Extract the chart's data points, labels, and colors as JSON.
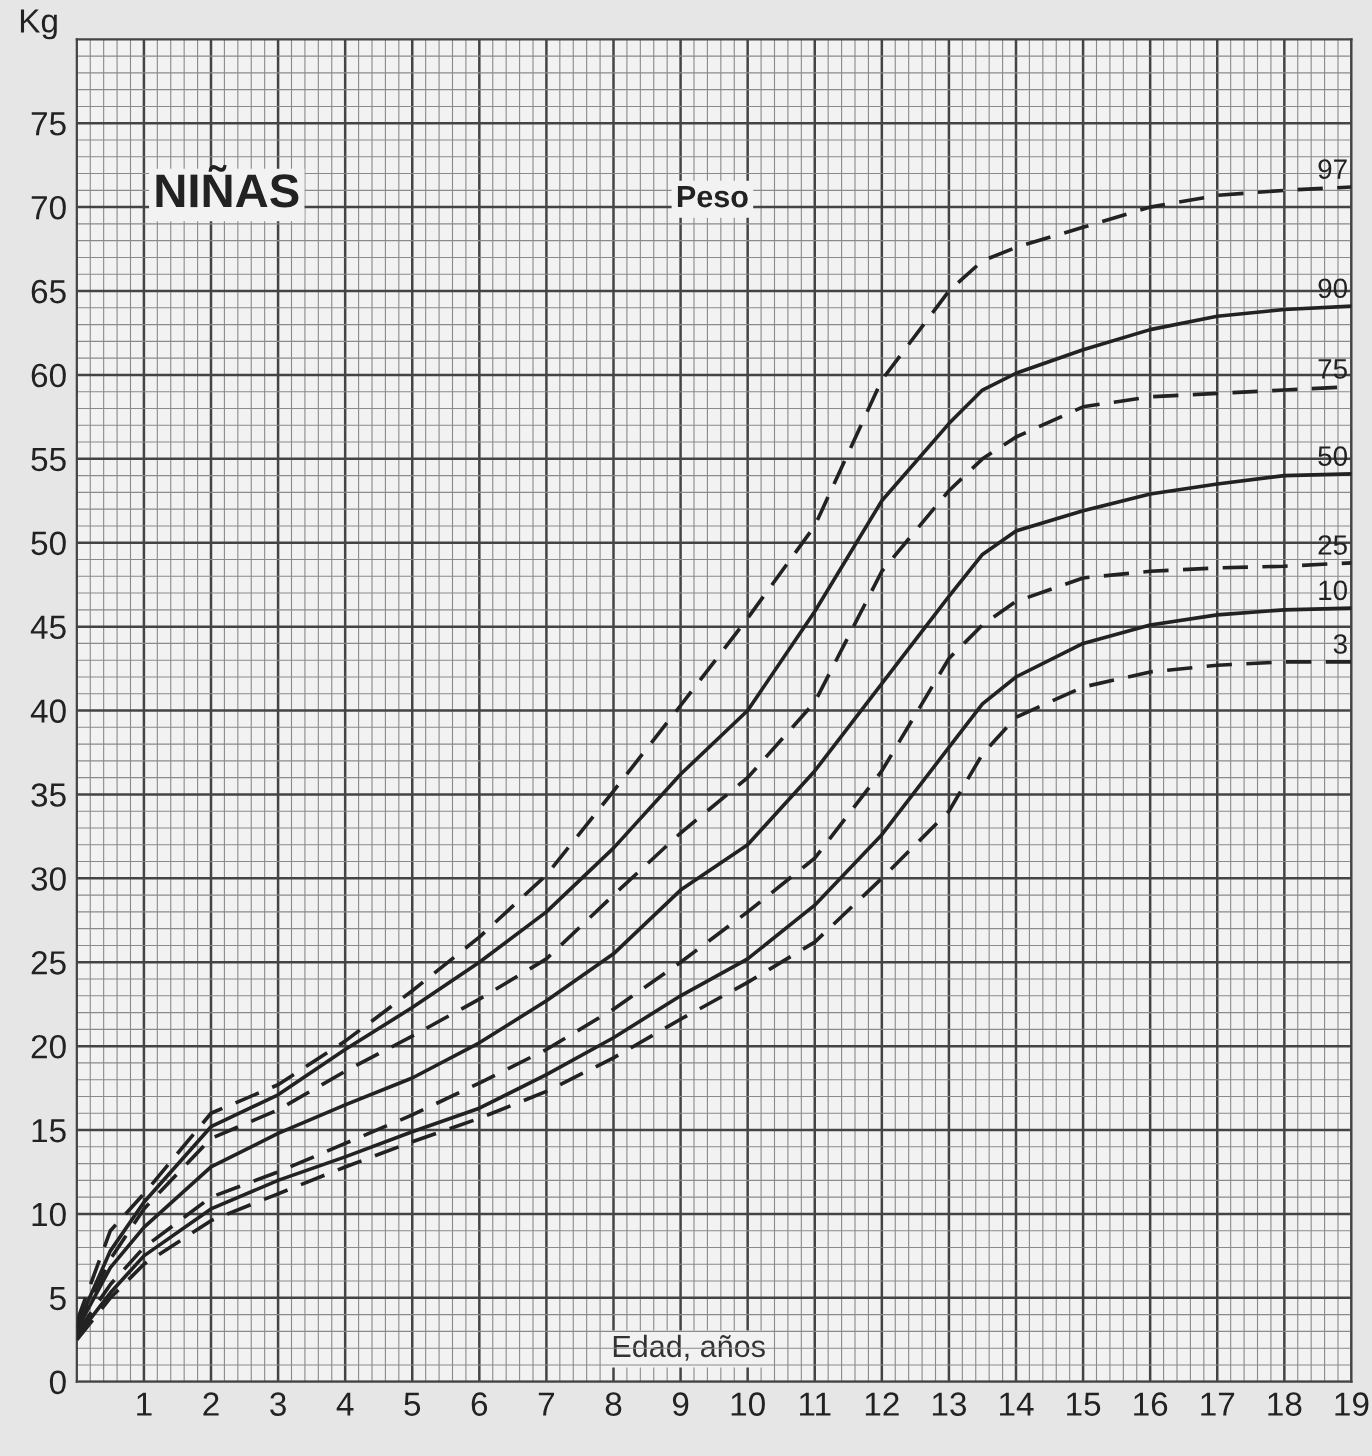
{
  "chart_data": {
    "type": "line",
    "title": "NIÑAS",
    "subtitle": "Peso",
    "xlabel": "Edad, años",
    "ylabel": "Kg",
    "xlim": [
      0,
      19
    ],
    "ylim": [
      0,
      80
    ],
    "xticks": [
      1,
      2,
      3,
      4,
      5,
      6,
      7,
      8,
      9,
      10,
      11,
      12,
      13,
      14,
      15,
      16,
      17,
      18,
      19
    ],
    "yticks": [
      0,
      5,
      10,
      15,
      20,
      25,
      30,
      35,
      40,
      45,
      50,
      55,
      60,
      65,
      70,
      75
    ],
    "grid": true,
    "legend": false,
    "marker": "none",
    "x": [
      0,
      0.5,
      1,
      2,
      3,
      4,
      5,
      6,
      7,
      8,
      9,
      10,
      11,
      12,
      13,
      13.5,
      14,
      15,
      16,
      17,
      18,
      19
    ],
    "series": [
      {
        "name": "97",
        "color": "#222222",
        "line_style": "dashed",
        "values": [
          3.6,
          9,
          11.2,
          16,
          17.7,
          20.3,
          23.3,
          26.5,
          30.2,
          35.2,
          40.3,
          45.5,
          51,
          59.7,
          65,
          66.8,
          67.6,
          68.8,
          70,
          70.7,
          71,
          71.2
        ]
      },
      {
        "name": "90",
        "color": "#222222",
        "line_style": "solid",
        "values": [
          3.3,
          7.8,
          10.7,
          15.2,
          17.1,
          19.8,
          22.3,
          25,
          28,
          31.8,
          36.2,
          40,
          45.9,
          52.5,
          57.1,
          59.1,
          60.1,
          61.5,
          62.7,
          63.5,
          63.9,
          64.1
        ]
      },
      {
        "name": "75",
        "color": "#222222",
        "line_style": "dashed",
        "values": [
          3.2,
          7.3,
          10.3,
          14.5,
          16.2,
          18.5,
          20.6,
          22.8,
          25.2,
          29,
          32.7,
          36,
          40.5,
          48.3,
          53.1,
          55,
          56.3,
          58.1,
          58.7,
          58.9,
          59.1,
          59.3
        ]
      },
      {
        "name": "50",
        "color": "#222222",
        "line_style": "solid",
        "values": [
          3.1,
          6.8,
          9.2,
          12.8,
          14.8,
          16.5,
          18.1,
          20.2,
          22.7,
          25.5,
          29.3,
          32,
          36.4,
          41.6,
          46.8,
          49.3,
          50.7,
          51.9,
          52.9,
          53.5,
          54,
          54.1
        ]
      },
      {
        "name": "25",
        "color": "#222222",
        "line_style": "dashed",
        "values": [
          2.9,
          5.8,
          8,
          11,
          12.5,
          14.2,
          15.9,
          17.8,
          19.8,
          22.2,
          25,
          28,
          31.2,
          36.4,
          43.1,
          45.1,
          46.5,
          47.9,
          48.3,
          48.5,
          48.6,
          48.8
        ]
      },
      {
        "name": "10",
        "color": "#222222",
        "line_style": "solid",
        "values": [
          2.7,
          5.3,
          7.5,
          10.3,
          12,
          13.4,
          14.9,
          16.3,
          18.3,
          20.5,
          23,
          25.2,
          28.4,
          32.6,
          37.8,
          40.4,
          42,
          44,
          45.1,
          45.7,
          46,
          46.1
        ]
      },
      {
        "name": "3",
        "color": "#222222",
        "line_style": "dashed",
        "values": [
          2.5,
          5,
          7,
          9.6,
          11.2,
          12.8,
          14.3,
          15.7,
          17.3,
          19.3,
          21.6,
          23.8,
          26.2,
          30,
          34,
          37.4,
          39.6,
          41.4,
          42.3,
          42.7,
          42.9,
          42.9
        ]
      }
    ]
  }
}
